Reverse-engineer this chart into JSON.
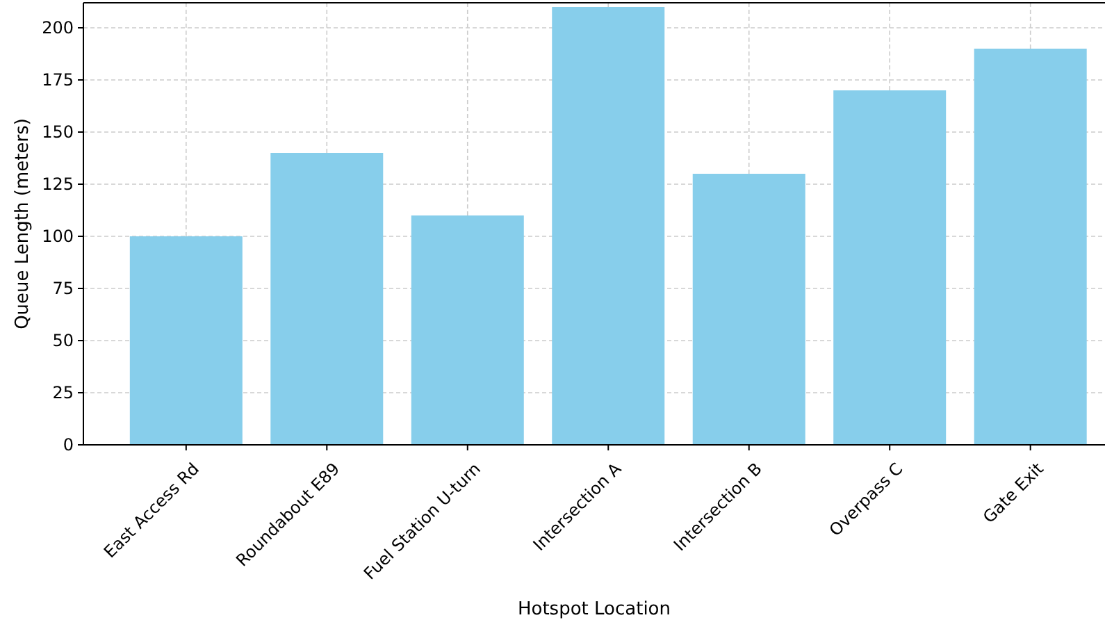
{
  "chart_data": {
    "type": "bar",
    "xlabel": "Hotspot Location",
    "ylabel": "Queue Length (meters)",
    "categories": [
      "East Access Rd",
      "Roundabout E89",
      "Fuel Station U-turn",
      "Intersection A",
      "Intersection B",
      "Overpass C",
      "Gate Exit"
    ],
    "values": [
      100,
      140,
      110,
      210,
      130,
      170,
      190
    ],
    "color": "#87ceeb",
    "ylim": [
      0,
      212
    ],
    "yticks": [
      0,
      25,
      50,
      75,
      100,
      125,
      150,
      175,
      200
    ],
    "grid": true
  }
}
